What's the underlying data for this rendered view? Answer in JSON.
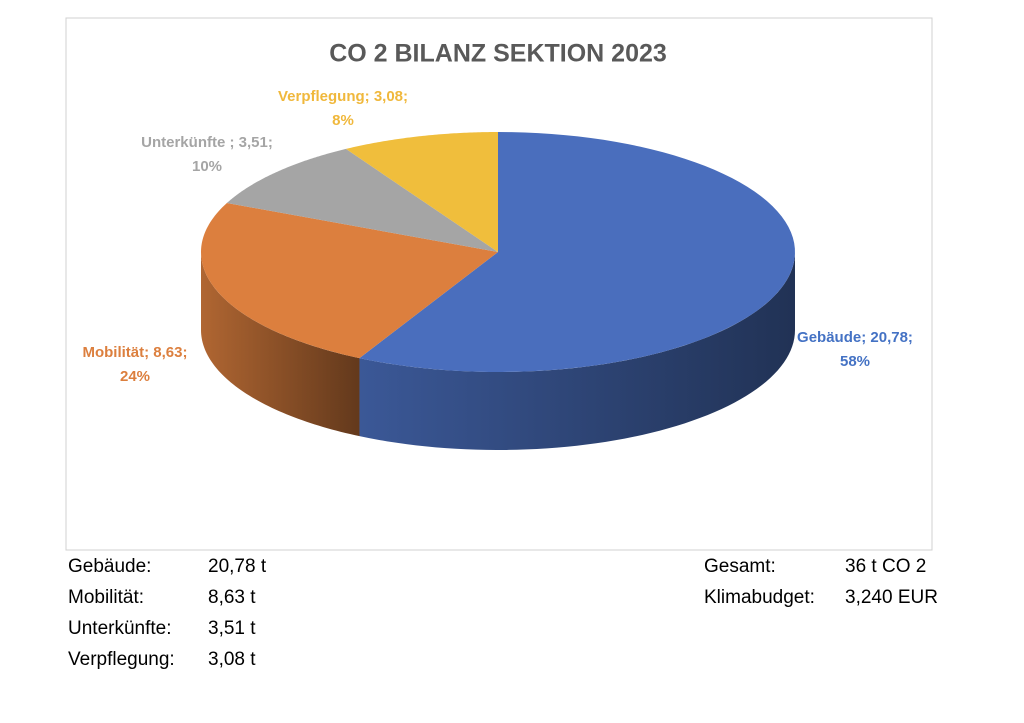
{
  "chart_data": {
    "type": "pie",
    "title": "CO 2 BILANZ SEKTION 2023",
    "categories": [
      "Gebäude",
      "Mobilität",
      "Unterkünfte",
      "Verpflegung"
    ],
    "values": [
      20.78,
      8.63,
      3.51,
      3.08
    ],
    "value_labels": [
      "Gebäude; 20,78;",
      "Mobilität; 8,63;",
      "Unterkünfte ; 3,51;",
      "Verpflegung; 3,08;"
    ],
    "percents": [
      58,
      24,
      10,
      8
    ],
    "percent_labels": [
      "58%",
      "24%",
      "10%",
      "8%"
    ],
    "colors": [
      "#4a6ebd",
      "#dc7f3e",
      "#a5a5a5",
      "#f0be3c"
    ],
    "label_colors": [
      "#4472c4",
      "#dc7f3e",
      "#a5a5a5",
      "#f0b83c"
    ]
  },
  "summary": {
    "left": [
      [
        "Gebäude:",
        "20,78 t"
      ],
      [
        "Mobilität:",
        "8,63 t"
      ],
      [
        "Unterkünfte:",
        "3,51 t"
      ],
      [
        "Verpflegung:",
        "3,08 t"
      ]
    ],
    "right": [
      [
        "Gesamt:",
        "36 t CO 2"
      ],
      [
        "Klimabudget:",
        "3,240 EUR"
      ]
    ]
  }
}
